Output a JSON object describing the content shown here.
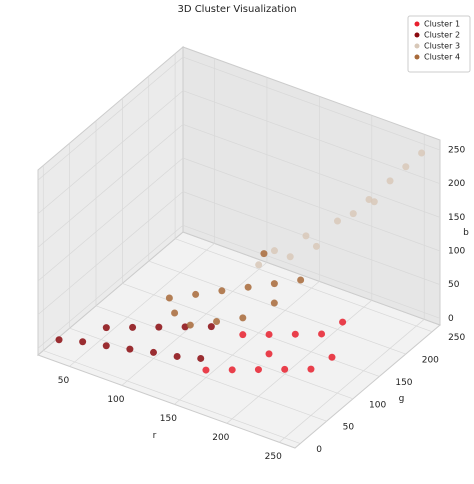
{
  "chart_data": {
    "type": "scatter3d",
    "title": "3D Cluster Visualization",
    "xlabel": "r",
    "ylabel": "g",
    "zlabel": "b",
    "xlim": [
      20,
      265
    ],
    "ylim": [
      -10,
      265
    ],
    "zlim": [
      -10,
      265
    ],
    "xticks": [
      50,
      100,
      150,
      200,
      250
    ],
    "yticks": [
      0,
      50,
      100,
      150,
      200,
      250
    ],
    "zticks": [
      0,
      50,
      100,
      150,
      200,
      250
    ],
    "grid": true,
    "legend": "upper right",
    "series": [
      {
        "name": "Cluster 1",
        "color": "#e8202e",
        "x": [
          160,
          180,
          200,
          220,
          240,
          250,
          230,
          210,
          190,
          170,
          200,
          240
        ],
        "y": [
          30,
          40,
          50,
          60,
          70,
          90,
          110,
          100,
          90,
          80,
          70,
          130
        ],
        "z": [
          20,
          25,
          30,
          35,
          40,
          50,
          60,
          55,
          50,
          45,
          40,
          70
        ]
      },
      {
        "name": "Cluster 2",
        "color": "#8b0a0f",
        "x": [
          30,
          50,
          70,
          90,
          110,
          130,
          150,
          60,
          80,
          100,
          120,
          140
        ],
        "y": [
          10,
          15,
          20,
          25,
          30,
          35,
          40,
          40,
          50,
          60,
          70,
          80
        ],
        "z": [
          5,
          10,
          12,
          15,
          18,
          20,
          25,
          20,
          25,
          30,
          35,
          40
        ]
      },
      {
        "name": "Cluster 3",
        "color": "#d8c8b8",
        "x": [
          170,
          190,
          210,
          230,
          250,
          200,
          220,
          240,
          180,
          160,
          230,
          255
        ],
        "y": [
          140,
          160,
          180,
          200,
          230,
          160,
          190,
          220,
          150,
          130,
          210,
          250
        ],
        "z": [
          130,
          150,
          170,
          200,
          240,
          140,
          180,
          220,
          120,
          110,
          190,
          250
        ]
      },
      {
        "name": "Cluster 4",
        "color": "#a86a3a",
        "x": [
          100,
          120,
          140,
          160,
          180,
          200,
          130,
          150,
          170,
          190,
          110,
          160
        ],
        "y": [
          80,
          90,
          100,
          110,
          120,
          130,
          60,
          70,
          80,
          100,
          70,
          140
        ],
        "z": [
          60,
          70,
          80,
          90,
          100,
          110,
          50,
          60,
          70,
          90,
          50,
          120
        ]
      }
    ]
  }
}
